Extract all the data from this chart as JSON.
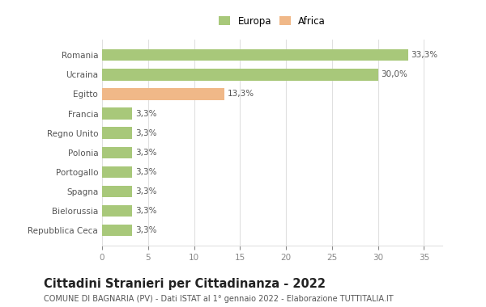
{
  "categories": [
    "Repubblica Ceca",
    "Bielorussia",
    "Spagna",
    "Portogallo",
    "Polonia",
    "Regno Unito",
    "Francia",
    "Egitto",
    "Ucraina",
    "Romania"
  ],
  "values": [
    3.3,
    3.3,
    3.3,
    3.3,
    3.3,
    3.3,
    3.3,
    13.3,
    30.0,
    33.3
  ],
  "colors": [
    "#a8c87a",
    "#a8c87a",
    "#a8c87a",
    "#a8c87a",
    "#a8c87a",
    "#a8c87a",
    "#a8c87a",
    "#f0b888",
    "#a8c87a",
    "#a8c87a"
  ],
  "labels": [
    "3,3%",
    "3,3%",
    "3,3%",
    "3,3%",
    "3,3%",
    "3,3%",
    "3,3%",
    "13,3%",
    "30,0%",
    "33,3%"
  ],
  "legend": [
    {
      "label": "Europa",
      "color": "#a8c87a"
    },
    {
      "label": "Africa",
      "color": "#f0b888"
    }
  ],
  "xlim": [
    0,
    37
  ],
  "xticks": [
    0,
    5,
    10,
    15,
    20,
    25,
    30,
    35
  ],
  "title": "Cittadini Stranieri per Cittadinanza - 2022",
  "subtitle": "COMUNE DI BAGNARIA (PV) - Dati ISTAT al 1° gennaio 2022 - Elaborazione TUTTITALIA.IT",
  "bg_color": "#ffffff",
  "grid_color": "#e0e0e0",
  "bar_height": 0.6,
  "label_fontsize": 7.5,
  "ytick_fontsize": 7.5,
  "xtick_fontsize": 7.5,
  "title_fontsize": 10.5,
  "subtitle_fontsize": 7.0,
  "legend_fontsize": 8.5
}
